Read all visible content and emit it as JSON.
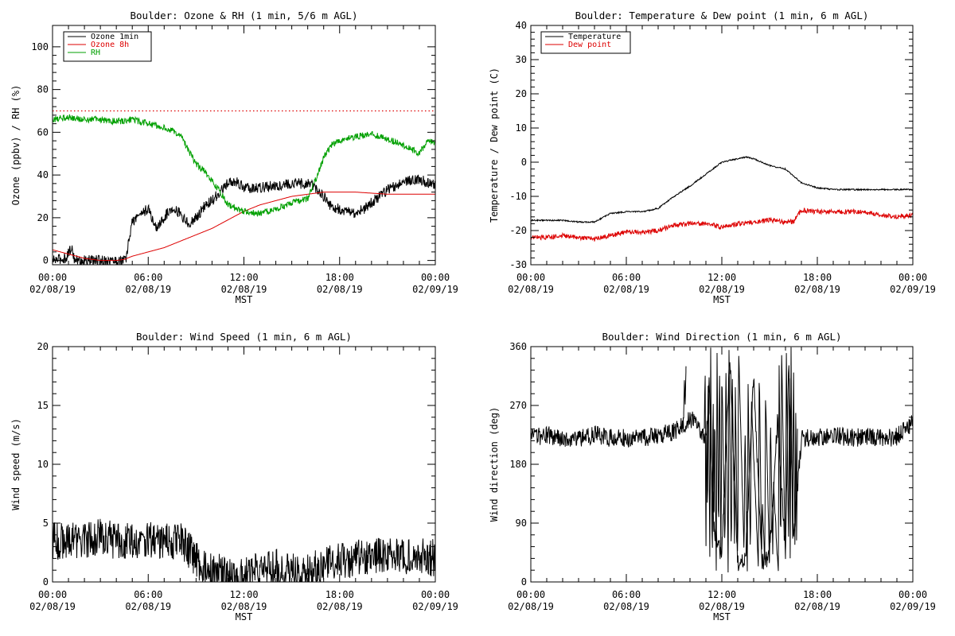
{
  "chart_data": [
    {
      "type": "line",
      "title": "Boulder: Ozone & RH (1 min, 5/6 m AGL)",
      "xlabel": "MST",
      "ylabel": "Ozone (ppbv) / RH (%)",
      "xlim": [
        0,
        24
      ],
      "ylim": [
        -2,
        110
      ],
      "xticks": [
        0,
        6,
        12,
        18,
        24
      ],
      "xtick_labels": [
        [
          "00:00",
          "02/08/19"
        ],
        [
          "06:00",
          "02/08/19"
        ],
        [
          "12:00",
          "02/08/19"
        ],
        [
          "18:00",
          "02/08/19"
        ],
        [
          "00:00",
          "02/09/19"
        ]
      ],
      "yticks": [
        0,
        20,
        40,
        60,
        80,
        100
      ],
      "ytick_labels": [
        "0",
        "20",
        "40",
        "60",
        "80",
        "100"
      ],
      "legend": "top-left",
      "reference_line": {
        "y": 70,
        "color": "#dd0000",
        "style": "dotted"
      },
      "series": [
        {
          "name": "Ozone 1min",
          "color": "#000000",
          "noise": 2.5,
          "x": [
            0,
            0.8,
            1.2,
            1.4,
            2.0,
            3.0,
            4.0,
            4.6,
            4.8,
            5.0,
            5.5,
            6.0,
            6.5,
            7.0,
            7.5,
            8.0,
            8.5,
            9.0,
            9.5,
            10.0,
            10.5,
            11.0,
            11.5,
            12.0,
            13.0,
            14.0,
            15.0,
            16.0,
            16.5,
            17.0,
            17.5,
            18.0,
            18.5,
            19.0,
            19.5,
            20.0,
            21.0,
            22.0,
            23.0,
            24.0
          ],
          "y": [
            0,
            1,
            6,
            0,
            0,
            0,
            0,
            0,
            10,
            18,
            22,
            24,
            15,
            20,
            25,
            22,
            17,
            20,
            25,
            28,
            32,
            36,
            37,
            34,
            34,
            35,
            36,
            36,
            34,
            30,
            25,
            24,
            23,
            22,
            24,
            27,
            33,
            37,
            38,
            35
          ]
        },
        {
          "name": "Ozone 8h",
          "color": "#dd0000",
          "noise": 0,
          "x": [
            0,
            1,
            2,
            3,
            4,
            4.5,
            5,
            6,
            7,
            8,
            9,
            10,
            11,
            12,
            13,
            14,
            15,
            16,
            17,
            18,
            19,
            20,
            21,
            22,
            23,
            24
          ],
          "y": [
            5,
            3,
            1,
            0,
            0,
            0.5,
            2,
            4,
            6,
            9,
            12,
            15,
            19,
            23,
            26,
            28,
            30,
            31,
            32,
            32,
            32,
            31.5,
            31,
            31,
            31,
            31
          ]
        },
        {
          "name": "RH",
          "color": "#00a000",
          "noise": 1.5,
          "x": [
            0,
            1,
            2,
            3,
            4,
            5,
            6,
            7,
            8,
            8.5,
            9,
            9.5,
            10,
            10.5,
            11,
            12,
            13,
            14,
            15,
            16,
            16.5,
            17,
            17.5,
            18,
            19,
            20,
            21,
            22,
            23,
            23.5,
            24
          ],
          "y": [
            66,
            67,
            66,
            66,
            65,
            66,
            64,
            62,
            59,
            52,
            45,
            42,
            37,
            32,
            26,
            23,
            22,
            24,
            27,
            29,
            38,
            48,
            54,
            56,
            58,
            59,
            57,
            54,
            50,
            56,
            55
          ]
        }
      ]
    },
    {
      "type": "line",
      "title": "Boulder: Temperature & Dew point (1 min, 6 m AGL)",
      "xlabel": "MST",
      "ylabel": "Temperature / Dew point (C)",
      "xlim": [
        0,
        24
      ],
      "ylim": [
        -30,
        40
      ],
      "xticks": [
        0,
        6,
        12,
        18,
        24
      ],
      "xtick_labels": [
        [
          "00:00",
          "02/08/19"
        ],
        [
          "06:00",
          "02/08/19"
        ],
        [
          "12:00",
          "02/08/19"
        ],
        [
          "18:00",
          "02/08/19"
        ],
        [
          "00:00",
          "02/09/19"
        ]
      ],
      "yticks": [
        -30,
        -20,
        -10,
        0,
        10,
        20,
        30,
        40
      ],
      "ytick_labels": [
        "-30",
        "-20",
        "-10",
        "0",
        "10",
        "20",
        "30",
        "40"
      ],
      "legend": "top-left",
      "series": [
        {
          "name": "Temperature",
          "color": "#000000",
          "noise": 0.2,
          "x": [
            0,
            1,
            2,
            3,
            4,
            5,
            6,
            7,
            8,
            9,
            10,
            11,
            12,
            13,
            13.5,
            14,
            15,
            16,
            17,
            18,
            19,
            20,
            21,
            22,
            23,
            24
          ],
          "y": [
            -17,
            -17,
            -17,
            -17.5,
            -17.5,
            -15,
            -14.5,
            -14.5,
            -13.5,
            -10,
            -7,
            -3.5,
            0,
            1,
            1.5,
            1,
            -1,
            -2,
            -6,
            -7.5,
            -8,
            -8,
            -8,
            -8,
            -8,
            -8
          ]
        },
        {
          "name": "Dew point",
          "color": "#dd0000",
          "noise": 0.7,
          "x": [
            0,
            1,
            2,
            3,
            4,
            5,
            6,
            7,
            8,
            9,
            10,
            11,
            12,
            13,
            14,
            15,
            16,
            16.5,
            17,
            18,
            19,
            20,
            21,
            22,
            23,
            24
          ],
          "y": [
            -22,
            -22,
            -21.5,
            -22,
            -22.5,
            -21.5,
            -20.5,
            -20.5,
            -20,
            -18.5,
            -18,
            -18,
            -19,
            -18,
            -17.5,
            -17,
            -17.5,
            -17.5,
            -14,
            -14.5,
            -14.5,
            -14.5,
            -14.5,
            -15.5,
            -16,
            -15.5
          ]
        }
      ]
    },
    {
      "type": "line",
      "title": "Boulder: Wind Speed (1 min, 6 m AGL)",
      "xlabel": "MST",
      "ylabel": "Wind speed (m/s)",
      "xlim": [
        0,
        24
      ],
      "ylim": [
        0,
        20
      ],
      "xticks": [
        0,
        6,
        12,
        18,
        24
      ],
      "xtick_labels": [
        [
          "00:00",
          "02/08/19"
        ],
        [
          "06:00",
          "02/08/19"
        ],
        [
          "12:00",
          "02/08/19"
        ],
        [
          "18:00",
          "02/08/19"
        ],
        [
          "00:00",
          "02/09/19"
        ]
      ],
      "yticks": [
        0,
        5,
        10,
        15,
        20
      ],
      "ytick_labels": [
        "0",
        "5",
        "10",
        "15",
        "20"
      ],
      "series": [
        {
          "name": "",
          "color": "#000000",
          "noise": 1.6,
          "x": [
            0,
            1,
            2,
            3,
            4,
            5,
            6,
            7,
            8,
            8.5,
            9,
            9.5,
            10,
            10.5,
            11,
            12,
            13,
            14,
            15,
            16,
            17,
            18,
            19,
            20,
            21,
            22,
            23,
            24
          ],
          "y": [
            3.5,
            3.5,
            3.5,
            3.8,
            3.5,
            3.5,
            3.5,
            3.5,
            3.5,
            2.8,
            2,
            1.2,
            0.8,
            1.0,
            0.5,
            0.6,
            1.0,
            1.2,
            0.8,
            1.0,
            1.3,
            1.8,
            2.0,
            2.2,
            2.3,
            2.2,
            2.3,
            2.0
          ]
        }
      ]
    },
    {
      "type": "line",
      "title": "Boulder: Wind Direction (1 min, 6 m AGL)",
      "xlabel": "MST",
      "ylabel": "Wind direction (deg)",
      "xlim": [
        0,
        24
      ],
      "ylim": [
        0,
        360
      ],
      "xticks": [
        0,
        6,
        12,
        18,
        24
      ],
      "xtick_labels": [
        [
          "00:00",
          "02/08/19"
        ],
        [
          "06:00",
          "02/08/19"
        ],
        [
          "12:00",
          "02/08/19"
        ],
        [
          "18:00",
          "02/08/19"
        ],
        [
          "00:00",
          "02/09/19"
        ]
      ],
      "yticks": [
        0,
        90,
        180,
        270,
        360
      ],
      "ytick_labels": [
        "0",
        "90",
        "180",
        "270",
        "360"
      ],
      "series": [
        {
          "name": "",
          "color": "#000000",
          "noise": 14,
          "x": [
            0,
            1,
            2,
            3,
            4,
            5,
            6,
            7,
            8,
            9,
            9.5,
            10,
            10.5,
            11,
            11.2,
            11.5,
            12,
            12.5,
            13,
            13.5,
            14,
            14.5,
            15,
            15.5,
            16,
            16.2,
            16.5,
            17,
            18,
            19,
            20,
            21,
            22,
            23,
            24
          ],
          "y": [
            220,
            225,
            220,
            220,
            225,
            220,
            220,
            220,
            225,
            230,
            240,
            250,
            240,
            220,
            300,
            80,
            40,
            350,
            30,
            40,
            320,
            30,
            40,
            250,
            40,
            350,
            60,
            220,
            220,
            225,
            220,
            222,
            220,
            222,
            245
          ]
        },
        {
          "name": "",
          "color": "#000000",
          "noise": 0,
          "x": [
            9.6,
            9.65,
            9.7,
            9.75
          ],
          "y": [
            250,
            310,
            270,
            330
          ]
        },
        {
          "name": "",
          "color": "#000000",
          "noise": 6,
          "x": [
            10.9,
            10.95,
            11.0,
            11.05,
            11.1,
            11.15,
            11.25,
            11.3,
            11.4,
            11.45,
            11.5,
            11.55,
            11.65,
            11.7,
            11.8,
            11.85,
            11.95,
            12.0,
            12.2,
            12.25,
            12.4,
            12.45,
            12.6,
            12.65,
            12.8,
            12.85,
            13.0,
            13.05,
            13.4,
            13.45,
            13.6,
            13.65,
            13.8,
            13.85,
            14.3,
            14.35,
            14.5,
            14.55,
            14.7,
            14.75,
            15.0,
            15.05,
            15.2,
            15.25,
            15.55,
            15.6,
            15.7,
            15.75,
            16.0,
            16.05,
            16.2,
            16.25,
            16.3,
            16.35,
            16.45,
            16.5,
            16.6,
            16.65,
            16.7,
            16.75
          ],
          "y": [
            230,
            340,
            20,
            300,
            60,
            350,
            30,
            360,
            10,
            330,
            40,
            280,
            10,
            350,
            50,
            360,
            20,
            330,
            40,
            350,
            10,
            360,
            30,
            340,
            50,
            300,
            20,
            360,
            40,
            250,
            10,
            300,
            30,
            280,
            20,
            330,
            40,
            120,
            30,
            290,
            20,
            260,
            40,
            150,
            10,
            340,
            30,
            360,
            20,
            360,
            40,
            355,
            10,
            360,
            30,
            350,
            20,
            300,
            40,
            230
          ]
        }
      ]
    }
  ]
}
